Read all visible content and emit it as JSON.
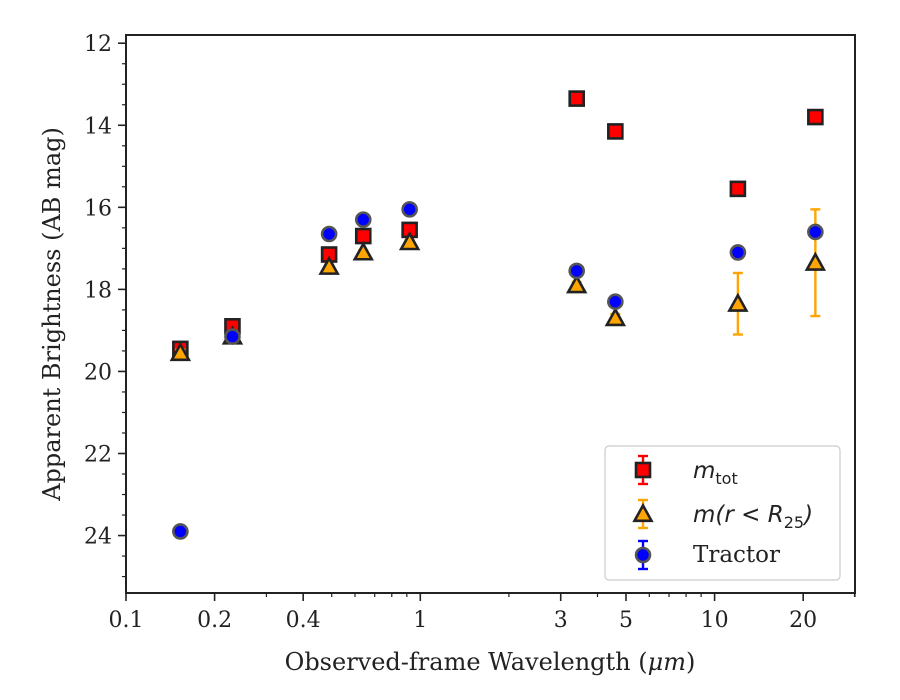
{
  "chart_data": {
    "type": "scatter",
    "xlabel_prefix": "Observed-frame Wavelength (",
    "xlabel_unit": "μm",
    "xlabel_suffix": ")",
    "ylabel": "Apparent Brightness (AB mag)",
    "x_scale": "log",
    "xlim": [
      0.1,
      30
    ],
    "ylim": [
      25.4,
      11.8
    ],
    "y_inverted": true,
    "x_ticks": [
      0.1,
      0.2,
      0.4,
      1,
      3,
      5,
      10,
      20
    ],
    "x_tick_labels": [
      "0.1",
      "0.2",
      "0.4",
      "1",
      "3",
      "5",
      "10",
      "20"
    ],
    "y_ticks": [
      12,
      14,
      16,
      18,
      20,
      22,
      24
    ],
    "y_tick_labels": [
      "12",
      "14",
      "16",
      "18",
      "20",
      "22",
      "24"
    ],
    "grid": false,
    "legend_position": "bottom-right",
    "series": [
      {
        "name": "m_tot",
        "legend_base": "m",
        "legend_sub": "tot",
        "marker": "square",
        "color": "#ff0000",
        "error_color": "#ff0000",
        "x": [
          0.153,
          0.23,
          0.49,
          0.64,
          0.92,
          3.4,
          4.6,
          12.0,
          22.0
        ],
        "y": [
          19.45,
          18.9,
          17.15,
          16.7,
          16.55,
          13.35,
          14.15,
          15.55,
          13.8
        ],
        "yerr": [
          0.1,
          0.08,
          0.05,
          0.05,
          0.05,
          0.03,
          0.03,
          0.05,
          0.05
        ]
      },
      {
        "name": "m(r < R_25)",
        "legend_base": "m(r < R",
        "legend_sub": "25",
        "legend_close": ")",
        "marker": "triangle",
        "color": "#ffa500",
        "error_color": "#ffa500",
        "x": [
          0.153,
          0.23,
          0.49,
          0.64,
          0.92,
          3.4,
          4.6,
          12.0,
          22.0
        ],
        "y": [
          19.55,
          19.15,
          17.45,
          17.1,
          16.85,
          17.9,
          18.7,
          18.35,
          17.35
        ],
        "yerr": [
          0.08,
          0.06,
          0.05,
          0.05,
          0.05,
          0.08,
          0.1,
          0.75,
          1.3
        ]
      },
      {
        "name": "Tractor",
        "marker": "circle",
        "color": "#0000ff",
        "error_color": "#0000ff",
        "x": [
          0.153,
          0.23,
          0.49,
          0.64,
          0.92,
          3.4,
          4.6,
          12.0,
          22.0
        ],
        "y": [
          23.9,
          19.15,
          16.65,
          16.3,
          16.05,
          17.55,
          18.3,
          17.1,
          16.6
        ],
        "yerr": [
          0.1,
          0.05,
          0.05,
          0.05,
          0.05,
          0.05,
          0.05,
          0.08,
          0.1
        ]
      }
    ]
  }
}
